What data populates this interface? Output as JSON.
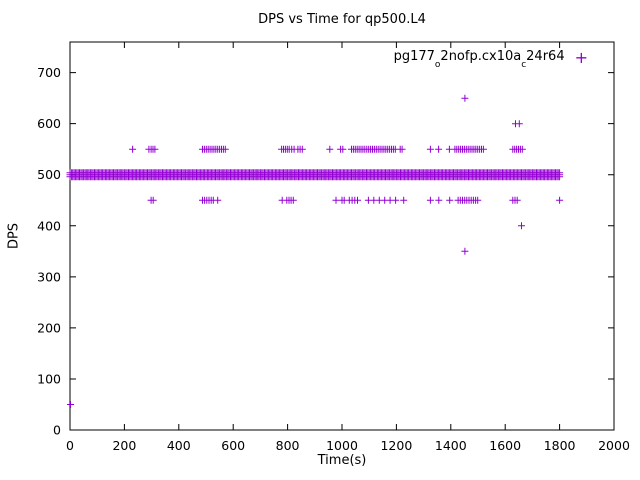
{
  "chart_data": {
    "type": "scatter",
    "title": "DPS vs Time for qp500.L4",
    "xlabel": "Time(s)",
    "ylabel": "DPS",
    "xlim": [
      0,
      2000
    ],
    "ylim": [
      0,
      760
    ],
    "xticks": [
      0,
      200,
      400,
      600,
      800,
      1000,
      1200,
      1400,
      1600,
      1800,
      2000
    ],
    "yticks": [
      0,
      100,
      200,
      300,
      400,
      500,
      600,
      700
    ],
    "grid": "off",
    "legend": {
      "label": "pg177_o2nofp.cx10a_c24r64",
      "position": "top-right",
      "marker_glyph": "+",
      "parts": {
        "p1": "pg177",
        "s1": "o",
        "p2": "2nofp.cx10a",
        "s2": "c",
        "p3": "24r64"
      }
    },
    "series": [
      {
        "name": "pg177_o2nofp.cx10a_c24r64",
        "marker": "plus",
        "color": "#9400D3",
        "band": {
          "y_values": [
            496,
            500,
            504
          ],
          "x_start": 0,
          "x_end": 1800,
          "step": 5
        },
        "rows": [
          {
            "y": 550,
            "x": [
              230,
              290,
              298,
              305,
              312,
              487,
              494,
              501,
              508,
              515,
              522,
              529,
              536,
              543,
              550,
              557,
              564,
              571,
              778,
              785,
              792,
              799,
              806,
              815,
              824,
              838,
              846,
              854,
              955,
              995,
              1003,
              1035,
              1042,
              1049,
              1056,
              1063,
              1070,
              1077,
              1084,
              1091,
              1098,
              1105,
              1112,
              1119,
              1126,
              1133,
              1140,
              1147,
              1154,
              1161,
              1168,
              1175,
              1182,
              1189,
              1196,
              1214,
              1221,
              1325,
              1355,
              1395,
              1415,
              1422,
              1429,
              1436,
              1443,
              1450,
              1457,
              1464,
              1471,
              1478,
              1485,
              1492,
              1499,
              1506,
              1513,
              1520,
              1628,
              1635,
              1642,
              1649,
              1656,
              1663
            ]
          },
          {
            "y": 450,
            "x": [
              298,
              306,
              487,
              495,
              503,
              511,
              519,
              527,
              543,
              780,
              797,
              805,
              813,
              821,
              978,
              1000,
              1008,
              1027,
              1037,
              1047,
              1057,
              1097,
              1117,
              1137,
              1157,
              1177,
              1197,
              1227,
              1325,
              1356,
              1396,
              1427,
              1435,
              1443,
              1451,
              1459,
              1467,
              1475,
              1483,
              1491,
              1499,
              1628,
              1636,
              1644,
              1800
            ]
          }
        ],
        "points": [
          [
            2,
            50
          ],
          [
            1452,
            650
          ],
          [
            1452,
            350
          ],
          [
            1638,
            600
          ],
          [
            1652,
            600
          ],
          [
            1660,
            400
          ]
        ]
      }
    ]
  }
}
